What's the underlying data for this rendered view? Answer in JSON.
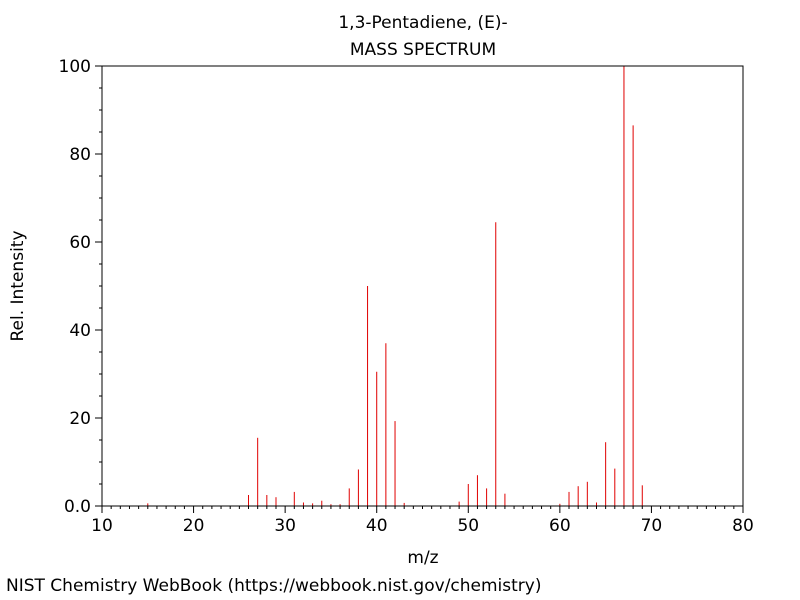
{
  "chart_data": {
    "type": "bar",
    "title": "1,3-Pentadiene, (E)-",
    "subtitle": "MASS SPECTRUM",
    "xlabel": "m/z",
    "ylabel": "Rel. Intensity",
    "xlim": [
      10,
      80
    ],
    "ylim": [
      0,
      100
    ],
    "x_ticks": [
      "10",
      "20",
      "30",
      "40",
      "50",
      "60",
      "70",
      "80"
    ],
    "y_ticks": [
      "0.0",
      "20",
      "40",
      "60",
      "80",
      "100"
    ],
    "bar_color": "#e00000",
    "grid": false,
    "peaks": [
      {
        "mz": 15,
        "intensity": 0.6
      },
      {
        "mz": 26,
        "intensity": 2.5
      },
      {
        "mz": 27,
        "intensity": 15.5
      },
      {
        "mz": 28,
        "intensity": 2.5
      },
      {
        "mz": 29,
        "intensity": 2.0
      },
      {
        "mz": 31,
        "intensity": 3.2
      },
      {
        "mz": 32,
        "intensity": 0.8
      },
      {
        "mz": 33,
        "intensity": 0.6
      },
      {
        "mz": 34,
        "intensity": 1.2
      },
      {
        "mz": 35,
        "intensity": 0.4
      },
      {
        "mz": 36,
        "intensity": 0.4
      },
      {
        "mz": 37,
        "intensity": 4.0
      },
      {
        "mz": 38,
        "intensity": 8.3
      },
      {
        "mz": 39,
        "intensity": 50.0
      },
      {
        "mz": 40,
        "intensity": 30.5
      },
      {
        "mz": 41,
        "intensity": 37.0
      },
      {
        "mz": 42,
        "intensity": 19.3
      },
      {
        "mz": 43,
        "intensity": 0.7
      },
      {
        "mz": 49,
        "intensity": 1.0
      },
      {
        "mz": 50,
        "intensity": 5.0
      },
      {
        "mz": 51,
        "intensity": 7.0
      },
      {
        "mz": 52,
        "intensity": 4.0
      },
      {
        "mz": 53,
        "intensity": 64.5
      },
      {
        "mz": 54,
        "intensity": 2.8
      },
      {
        "mz": 60,
        "intensity": 0.5
      },
      {
        "mz": 61,
        "intensity": 3.2
      },
      {
        "mz": 62,
        "intensity": 4.5
      },
      {
        "mz": 63,
        "intensity": 5.5
      },
      {
        "mz": 64,
        "intensity": 0.8
      },
      {
        "mz": 65,
        "intensity": 14.5
      },
      {
        "mz": 66,
        "intensity": 8.5
      },
      {
        "mz": 67,
        "intensity": 100.0
      },
      {
        "mz": 68,
        "intensity": 86.5
      },
      {
        "mz": 69,
        "intensity": 4.7
      }
    ]
  },
  "footer": {
    "credit": "NIST Chemistry WebBook (https://webbook.nist.gov/chemistry)"
  }
}
